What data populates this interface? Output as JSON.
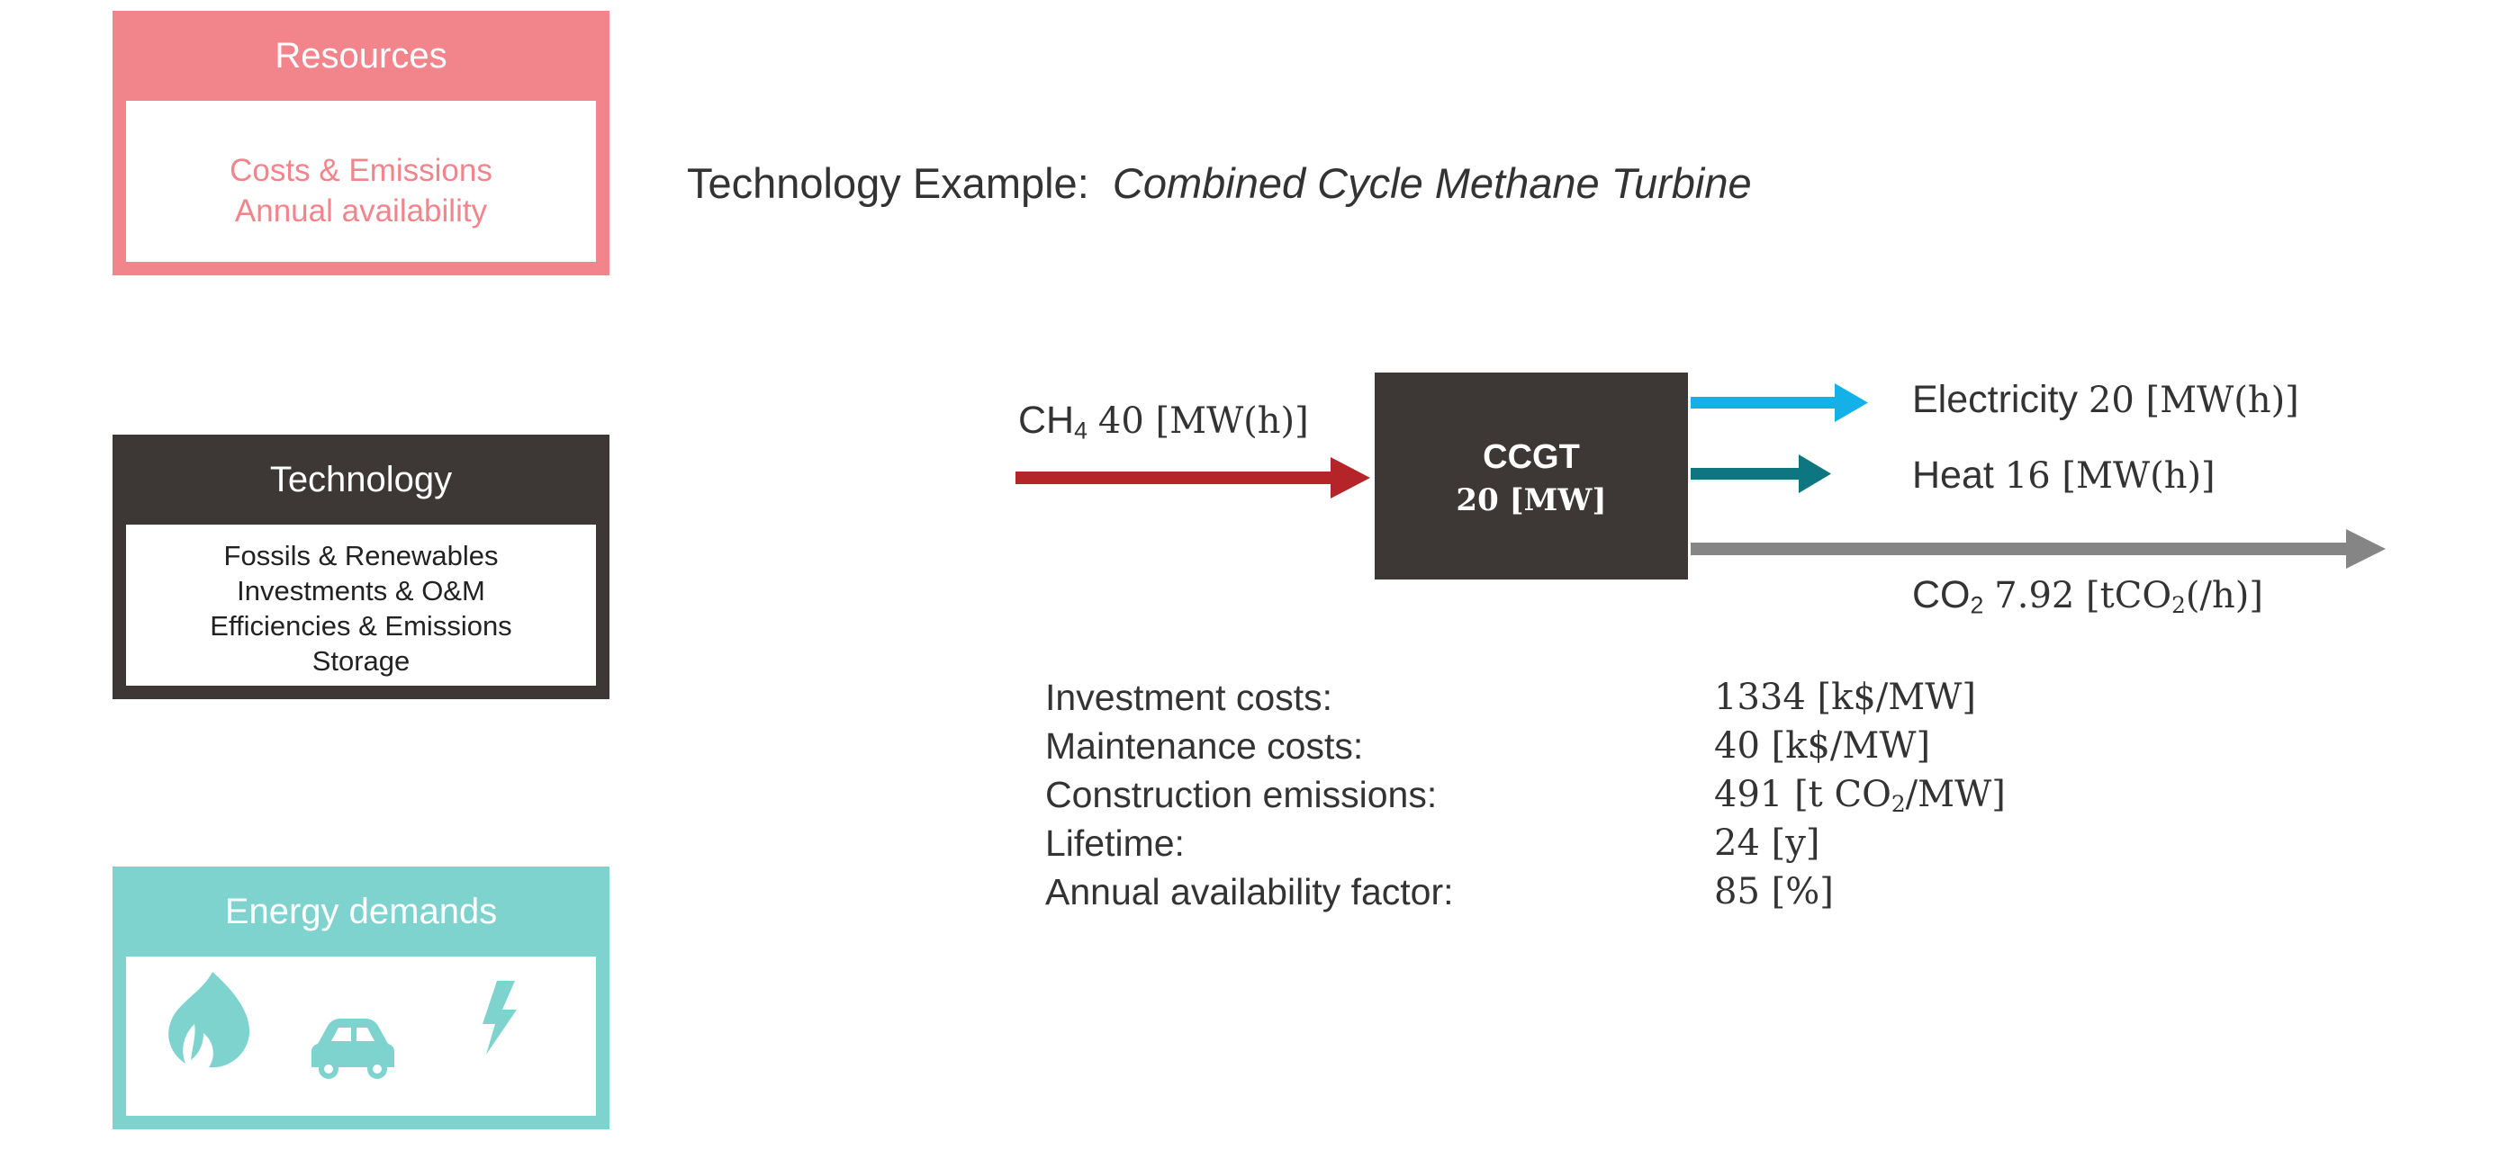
{
  "panels": {
    "resources": {
      "title": "Resources",
      "lines": [
        "Costs & Emissions",
        "Annual availability"
      ],
      "color": "#f2848b"
    },
    "technology": {
      "title": "Technology",
      "lines": [
        "Fossils & Renewables",
        "Investments & O&M",
        "Efficiencies & Emissions",
        "Storage"
      ],
      "color": "#3d3735"
    },
    "demands": {
      "title": "Energy demands",
      "icons": [
        "fire-icon",
        "car-icon",
        "lightning-icon"
      ],
      "color": "#7fd3cf"
    }
  },
  "heading": {
    "prefix": "Technology Example:",
    "name": "Combined Cycle Methane Turbine"
  },
  "tech_box": {
    "name": "CCGT",
    "capacity": "20 [MW]"
  },
  "flows": {
    "input": {
      "species": "CH",
      "sub": "4",
      "value": "40 [MW(h)]",
      "color": "#b52428"
    },
    "electricity": {
      "label": "Electricity",
      "value": "20 [MW(h)]",
      "color": "#14b1e8"
    },
    "heat": {
      "label": "Heat",
      "value": "16 [MW(h)]",
      "color": "#0e7680"
    },
    "co2": {
      "species": "CO",
      "sub": "2",
      "value_pre": "7.92 [tCO",
      "value_sub": "2",
      "value_post": "(/h)]",
      "color": "#858585"
    }
  },
  "parameters": [
    {
      "label": "Investment costs:",
      "value": "1334 [k$/MW]"
    },
    {
      "label": "Maintenance costs:",
      "value": "40 [k$/MW]"
    },
    {
      "label": "Construction emissions:",
      "value_pre": "491 [t CO",
      "value_sub": "2",
      "value_post": "/MW]"
    },
    {
      "label": "Lifetime:",
      "value": "24 [y]"
    },
    {
      "label": "Annual availability factor:",
      "value": "85 [%]"
    }
  ]
}
